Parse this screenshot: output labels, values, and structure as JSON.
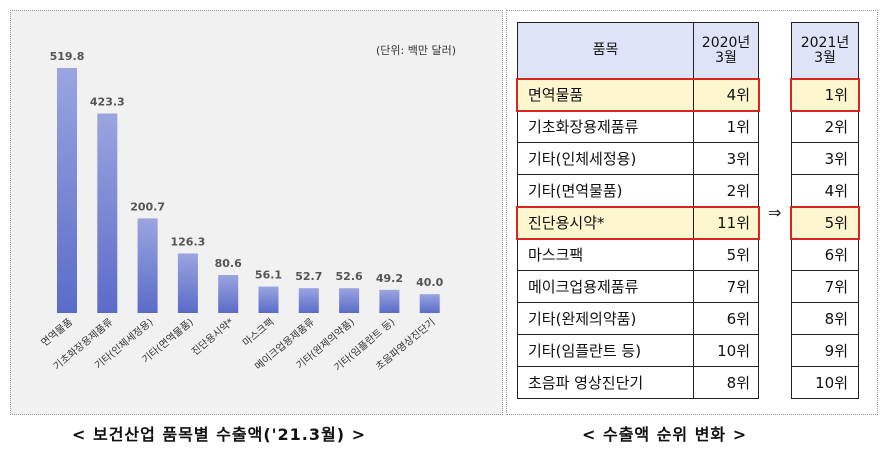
{
  "chart_data": {
    "type": "bar",
    "unit_label": "(단위: 백만 달러)",
    "categories": [
      "면역물품",
      "기초화장용제품류",
      "기타(인체세정용)",
      "기타(면역물품)",
      "진단용시약*",
      "마스크팩",
      "메이크업용제품류",
      "기타(완제의약품)",
      "기타(임플란트 등)",
      "초음파영상진단기"
    ],
    "values": [
      519.8,
      423.3,
      200.7,
      126.3,
      80.6,
      56.1,
      52.7,
      52.6,
      49.2,
      40.0
    ],
    "value_labels": [
      "519.8",
      "423.3",
      "200.7",
      "126.3",
      "80.6",
      "56.1",
      "52.7",
      "52.6",
      "49.2",
      "40.0"
    ],
    "colors": {
      "bar_top": "#9aa5e0",
      "bar_bottom": "#5b6bc8",
      "panel_bg": "#f1f1f1"
    },
    "caption": "< 보건산업 품목별 수출액('21.3월) >"
  },
  "ranking": {
    "header_item": "품목",
    "header_2020": "2020년 3월",
    "header_2020_lines": [
      "2020년",
      "3월"
    ],
    "header_2021_lines": [
      "2021년",
      "3월"
    ],
    "arrow": "⇒",
    "caption": "< 수출액 순위 변화 >",
    "rows": [
      {
        "item": "면역물품",
        "rank2020": "4위",
        "rank2021": "1위",
        "highlight": true
      },
      {
        "item": "기초화장용제품류",
        "rank2020": "1위",
        "rank2021": "2위",
        "highlight": false
      },
      {
        "item": "기타(인체세정용)",
        "rank2020": "3위",
        "rank2021": "3위",
        "highlight": false
      },
      {
        "item": "기타(면역물품)",
        "rank2020": "2위",
        "rank2021": "4위",
        "highlight": false
      },
      {
        "item": "진단용시약*",
        "rank2020": "11위",
        "rank2021": "5위",
        "highlight": true
      },
      {
        "item": "마스크팩",
        "rank2020": "5위",
        "rank2021": "6위",
        "highlight": false
      },
      {
        "item": "메이크업용제품류",
        "rank2020": "7위",
        "rank2021": "7위",
        "highlight": false
      },
      {
        "item": "기타(완제의약품)",
        "rank2020": "6위",
        "rank2021": "8위",
        "highlight": false
      },
      {
        "item": "기타(임플란트 등)",
        "rank2020": "10위",
        "rank2021": "9위",
        "highlight": false
      },
      {
        "item": "초음파 영상진단기",
        "rank2020": "8위",
        "rank2021": "10위",
        "highlight": false
      }
    ],
    "colors": {
      "header_bg": "#dfe3f8",
      "highlight_bg": "#fdf6cf",
      "highlight_border": "#d9261c"
    }
  }
}
